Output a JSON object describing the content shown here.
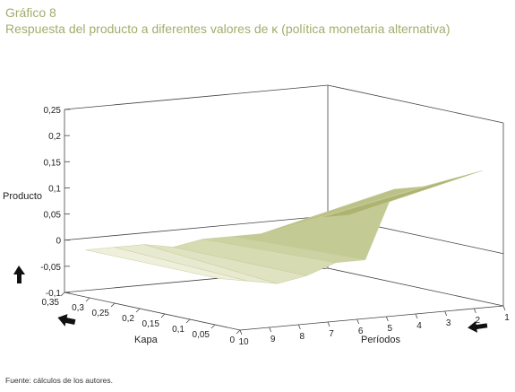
{
  "header": {
    "figure_label": "Gráfico 8",
    "subtitle": "Respuesta del producto a diferentes valores de κ (política monetaria alternativa)"
  },
  "footer": {
    "source": "Fuente: cálculos de los autores."
  },
  "chart_data": {
    "type": "surface3d",
    "title": "Respuesta del producto a diferentes valores de κ (política monetaria alternativa)",
    "zlabel": "Producto",
    "ylabel": "Kapa",
    "xlabel": "Períodos",
    "zlim": [
      -0.1,
      0.25
    ],
    "z_ticks": [
      "0,25",
      "0,2",
      "0,15",
      "0,1",
      "0,05",
      "0",
      "-0,05",
      "-0,1"
    ],
    "kapa_ticks": [
      "0,35",
      "0,3",
      "0,25",
      "0,2",
      "0,15",
      "0,1",
      "0,05",
      "0"
    ],
    "period_ticks": [
      "10",
      "9",
      "8",
      "7",
      "6",
      "5",
      "4",
      "3",
      "2",
      "1"
    ],
    "periods": [
      10,
      9,
      8,
      7,
      6,
      5,
      4,
      3,
      2,
      1
    ],
    "kapa": [
      0.35,
      0.05
    ],
    "series": [
      {
        "kapa": 0.35,
        "values": [
          -0.01,
          -0.01,
          -0.01,
          -0.02,
          -0.01,
          -0.01,
          -0.01,
          0.0,
          0.01,
          0.01
        ]
      },
      {
        "kapa": 0.05,
        "values": [
          -0.01,
          -0.02,
          -0.03,
          -0.02,
          0.0,
          0.0,
          0.13,
          0.13,
          0.14,
          0.15
        ]
      }
    ],
    "surface_color": "#b8bd7a",
    "arrow_icons": [
      "up-arrow-icon",
      "left-arrow-icon",
      "left-arrow-icon"
    ]
  }
}
